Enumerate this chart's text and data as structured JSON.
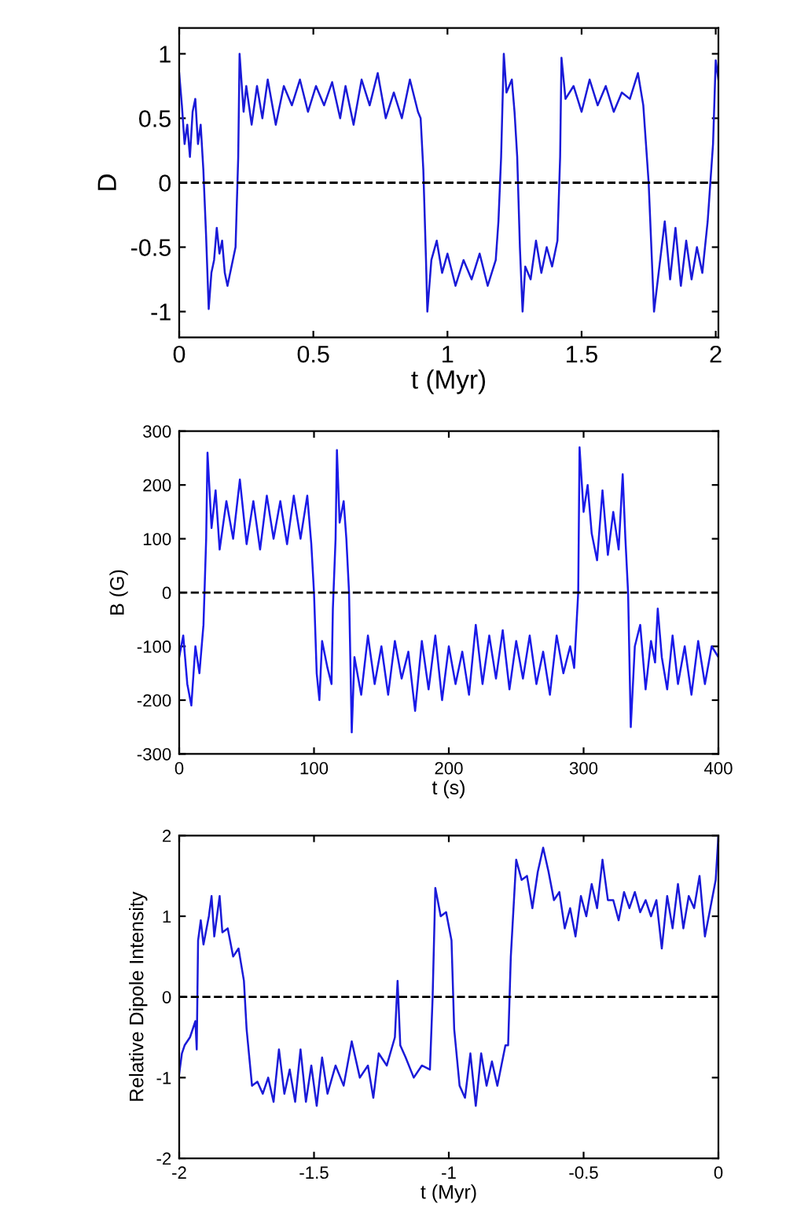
{
  "chart_data": [
    {
      "type": "line",
      "xlabel": "t (Myr)",
      "ylabel": "D",
      "xlim": [
        0,
        2.01
      ],
      "ylim": [
        -1.2,
        1.2
      ],
      "xticks": [
        0,
        0.5,
        1,
        1.5,
        2
      ],
      "yticks": [
        -1,
        -0.5,
        0,
        0.5,
        1
      ],
      "grid": false,
      "ref_lines": [
        {
          "axis": "y",
          "value": 0,
          "color": "#000000",
          "line_style": "dashed"
        }
      ],
      "series": [
        {
          "color": "#1a1ad8",
          "x": [
            0,
            0.01,
            0.02,
            0.03,
            0.04,
            0.05,
            0.06,
            0.07,
            0.08,
            0.09,
            0.1,
            0.11,
            0.12,
            0.13,
            0.14,
            0.15,
            0.16,
            0.17,
            0.18,
            0.19,
            0.21,
            0.22,
            0.225,
            0.24,
            0.25,
            0.27,
            0.29,
            0.31,
            0.33,
            0.36,
            0.39,
            0.42,
            0.45,
            0.48,
            0.51,
            0.54,
            0.57,
            0.6,
            0.62,
            0.65,
            0.68,
            0.71,
            0.74,
            0.77,
            0.8,
            0.83,
            0.86,
            0.89,
            0.9,
            0.91,
            0.92,
            0.925,
            0.94,
            0.96,
            0.98,
            1.0,
            1.03,
            1.06,
            1.09,
            1.12,
            1.15,
            1.18,
            1.19,
            1.2,
            1.21,
            1.22,
            1.24,
            1.25,
            1.26,
            1.27,
            1.28,
            1.29,
            1.31,
            1.33,
            1.35,
            1.37,
            1.39,
            1.41,
            1.42,
            1.425,
            1.44,
            1.47,
            1.5,
            1.53,
            1.56,
            1.59,
            1.62,
            1.65,
            1.68,
            1.71,
            1.73,
            1.74,
            1.75,
            1.76,
            1.77,
            1.79,
            1.81,
            1.83,
            1.85,
            1.87,
            1.89,
            1.91,
            1.93,
            1.95,
            1.97,
            1.99,
            2.0,
            2.01
          ],
          "values": [
            0.85,
            0.6,
            0.3,
            0.45,
            0.2,
            0.55,
            0.65,
            0.3,
            0.45,
            0.1,
            -0.4,
            -0.98,
            -0.7,
            -0.6,
            -0.35,
            -0.55,
            -0.45,
            -0.7,
            -0.8,
            -0.7,
            -0.5,
            0.2,
            1.0,
            0.55,
            0.75,
            0.45,
            0.75,
            0.5,
            0.8,
            0.45,
            0.75,
            0.6,
            0.8,
            0.55,
            0.75,
            0.6,
            0.78,
            0.5,
            0.75,
            0.45,
            0.8,
            0.6,
            0.85,
            0.5,
            0.7,
            0.5,
            0.8,
            0.55,
            0.5,
            0.1,
            -0.6,
            -1.0,
            -0.6,
            -0.45,
            -0.7,
            -0.55,
            -0.8,
            -0.6,
            -0.75,
            -0.55,
            -0.8,
            -0.6,
            -0.3,
            0.2,
            1.0,
            0.7,
            0.8,
            0.55,
            0.2,
            -0.5,
            -1.0,
            -0.65,
            -0.75,
            -0.45,
            -0.7,
            -0.5,
            -0.65,
            -0.45,
            0.2,
            0.97,
            0.65,
            0.75,
            0.55,
            0.8,
            0.6,
            0.75,
            0.55,
            0.7,
            0.65,
            0.85,
            0.6,
            0.3,
            0.0,
            -0.5,
            -1.0,
            -0.65,
            -0.3,
            -0.75,
            -0.35,
            -0.8,
            -0.45,
            -0.75,
            -0.5,
            -0.7,
            -0.3,
            0.3,
            0.95,
            0.8
          ]
        }
      ]
    },
    {
      "type": "line",
      "xlabel": "t (s)",
      "ylabel": "B (G)",
      "xlim": [
        0,
        400
      ],
      "ylim": [
        -300,
        300
      ],
      "xticks": [
        0,
        100,
        200,
        300,
        400
      ],
      "yticks": [
        -300,
        -200,
        -100,
        0,
        100,
        200,
        300
      ],
      "grid": false,
      "ref_lines": [
        {
          "axis": "y",
          "value": 0,
          "color": "#000000",
          "line_style": "dashed"
        }
      ],
      "series": [
        {
          "color": "#1a1ae8",
          "x": [
            0,
            3,
            6,
            9,
            12,
            15,
            18,
            20,
            21,
            24,
            27,
            30,
            35,
            40,
            45,
            50,
            55,
            60,
            65,
            70,
            75,
            80,
            85,
            90,
            95,
            98,
            100,
            102,
            104,
            106,
            110,
            113,
            114,
            116,
            117,
            119,
            122,
            124,
            126,
            128,
            130,
            135,
            140,
            145,
            150,
            155,
            160,
            165,
            170,
            175,
            180,
            185,
            190,
            195,
            200,
            205,
            210,
            215,
            220,
            225,
            230,
            235,
            240,
            245,
            250,
            255,
            260,
            265,
            270,
            275,
            280,
            285,
            290,
            293,
            296,
            297,
            300,
            303,
            306,
            310,
            314,
            318,
            322,
            326,
            329,
            331,
            333,
            335,
            338,
            342,
            346,
            350,
            353,
            355,
            358,
            362,
            366,
            370,
            375,
            380,
            385,
            390,
            395,
            400
          ],
          "values": [
            -120,
            -80,
            -170,
            -210,
            -100,
            -150,
            -60,
            100,
            260,
            120,
            190,
            80,
            170,
            100,
            210,
            90,
            170,
            80,
            180,
            100,
            170,
            90,
            180,
            100,
            180,
            90,
            0,
            -150,
            -200,
            -90,
            -140,
            -170,
            -30,
            100,
            265,
            130,
            170,
            100,
            0,
            -260,
            -120,
            -190,
            -80,
            -170,
            -100,
            -190,
            -90,
            -160,
            -110,
            -220,
            -90,
            -180,
            -80,
            -200,
            -100,
            -170,
            -110,
            -190,
            -60,
            -170,
            -80,
            -160,
            -70,
            -180,
            -90,
            -160,
            -80,
            -170,
            -110,
            -190,
            -80,
            -150,
            -100,
            -140,
            0,
            270,
            150,
            200,
            110,
            60,
            190,
            70,
            150,
            80,
            220,
            100,
            0,
            -250,
            -100,
            -60,
            -180,
            -90,
            -130,
            -30,
            -120,
            -180,
            -80,
            -170,
            -100,
            -190,
            -90,
            -170,
            -100,
            -120
          ]
        }
      ]
    },
    {
      "type": "line",
      "xlabel": "t (Myr)",
      "ylabel": "Relative Dipole Intensity",
      "xlim": [
        -2,
        0
      ],
      "ylim": [
        -2,
        2
      ],
      "xticks": [
        -2,
        -1.5,
        -1,
        -0.5,
        0
      ],
      "yticks": [
        -2,
        -1,
        0,
        1,
        2
      ],
      "grid": false,
      "ref_lines": [
        {
          "axis": "y",
          "value": 0,
          "color": "#000000",
          "line_style": "dashed"
        }
      ],
      "series": [
        {
          "color": "#1a1ad8",
          "x": [
            -2,
            -1.99,
            -1.98,
            -1.96,
            -1.94,
            -1.935,
            -1.93,
            -1.92,
            -1.91,
            -1.89,
            -1.88,
            -1.87,
            -1.85,
            -1.84,
            -1.82,
            -1.8,
            -1.78,
            -1.76,
            -1.75,
            -1.73,
            -1.71,
            -1.69,
            -1.67,
            -1.65,
            -1.63,
            -1.61,
            -1.59,
            -1.57,
            -1.55,
            -1.53,
            -1.51,
            -1.49,
            -1.47,
            -1.45,
            -1.42,
            -1.39,
            -1.36,
            -1.33,
            -1.3,
            -1.28,
            -1.26,
            -1.23,
            -1.2,
            -1.19,
            -1.18,
            -1.16,
            -1.13,
            -1.1,
            -1.07,
            -1.06,
            -1.05,
            -1.03,
            -1.01,
            -0.99,
            -0.98,
            -0.96,
            -0.94,
            -0.92,
            -0.9,
            -0.88,
            -0.86,
            -0.84,
            -0.82,
            -0.79,
            -0.78,
            -0.77,
            -0.75,
            -0.73,
            -0.71,
            -0.69,
            -0.67,
            -0.65,
            -0.63,
            -0.61,
            -0.59,
            -0.57,
            -0.55,
            -0.53,
            -0.51,
            -0.49,
            -0.47,
            -0.45,
            -0.43,
            -0.41,
            -0.39,
            -0.37,
            -0.35,
            -0.33,
            -0.31,
            -0.29,
            -0.27,
            -0.25,
            -0.23,
            -0.21,
            -0.19,
            -0.17,
            -0.15,
            -0.13,
            -0.11,
            -0.09,
            -0.07,
            -0.05,
            -0.03,
            -0.01,
            0
          ],
          "values": [
            -0.95,
            -0.7,
            -0.6,
            -0.5,
            -0.3,
            -0.65,
            0.7,
            0.95,
            0.65,
            1.0,
            1.25,
            0.75,
            1.25,
            0.8,
            0.85,
            0.5,
            0.6,
            0.2,
            -0.4,
            -1.1,
            -1.05,
            -1.2,
            -1.0,
            -1.3,
            -0.65,
            -1.2,
            -0.9,
            -1.3,
            -0.65,
            -1.3,
            -0.85,
            -1.35,
            -0.75,
            -1.2,
            -0.85,
            -1.1,
            -0.55,
            -1.0,
            -0.85,
            -1.25,
            -0.7,
            -0.85,
            -0.5,
            0.2,
            -0.6,
            -0.75,
            -1.0,
            -0.85,
            -0.9,
            0.0,
            1.35,
            1.0,
            1.05,
            0.7,
            -0.4,
            -1.1,
            -1.25,
            -0.7,
            -1.35,
            -0.7,
            -1.1,
            -0.8,
            -1.1,
            -0.6,
            -0.6,
            0.5,
            1.7,
            1.45,
            1.5,
            1.1,
            1.55,
            1.85,
            1.55,
            1.2,
            1.3,
            0.85,
            1.1,
            0.75,
            1.25,
            1.0,
            1.4,
            1.1,
            1.7,
            1.2,
            1.2,
            0.95,
            1.3,
            1.1,
            1.3,
            1.05,
            1.2,
            1.0,
            1.2,
            0.6,
            1.25,
            0.85,
            1.4,
            0.85,
            1.25,
            1.1,
            1.5,
            0.75,
            1.1,
            1.45,
            2.0
          ]
        }
      ]
    }
  ]
}
